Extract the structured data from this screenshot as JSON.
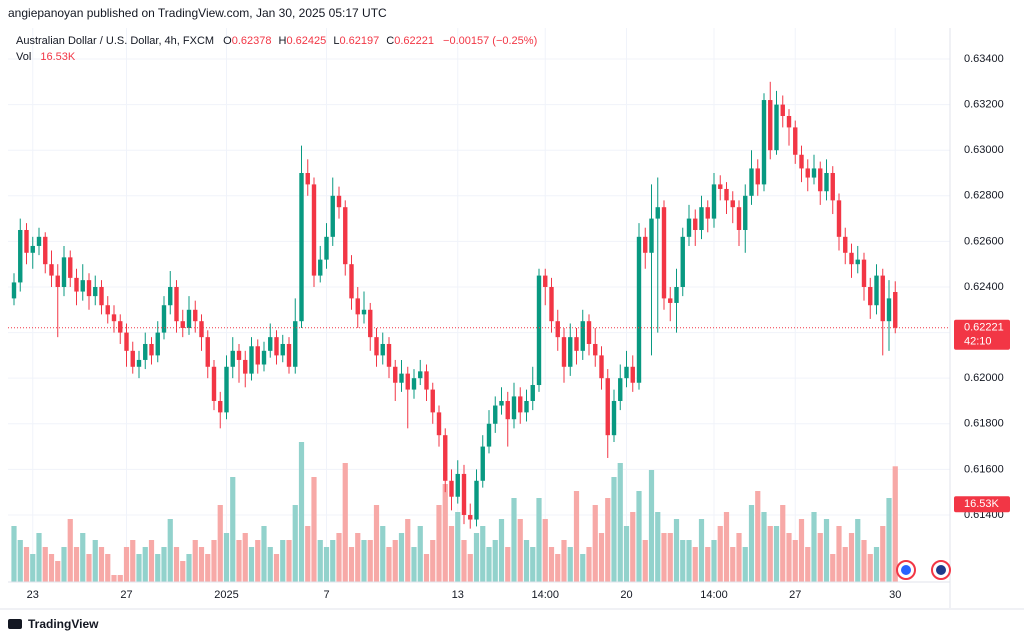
{
  "header": {
    "published": "angiepanoyan published on TradingView.com, Jan 30, 2025 05:17 UTC"
  },
  "chart_data": {
    "type": "candlestick",
    "title": "Australian Dollar / U.S. Dollar, 4h, FXCM",
    "legend": {
      "o": "O",
      "open": "0.62378",
      "h": "H",
      "high": "0.62425",
      "l": "L",
      "low": "0.62197",
      "c": "C",
      "close": "0.62221",
      "change": "−0.00157 (−0.25%)"
    },
    "volume_title": "Vol",
    "volume_label": "16.53K",
    "countdown": "42:10",
    "up_color": "#089981",
    "down_color": "#f23645",
    "up_volume_color": "#92d2cc",
    "down_volume_color": "#f7a9a7",
    "grid": true,
    "ylim": [
      0.61106,
      0.63536
    ],
    "yticks": [
      {
        "value": 0.614,
        "label": "0.61400"
      },
      {
        "value": 0.616,
        "label": "0.61600"
      },
      {
        "value": 0.618,
        "label": "0.61800"
      },
      {
        "value": 0.62,
        "label": "0.62000"
      },
      {
        "value": 0.622,
        "label": "0.62200"
      },
      {
        "value": 0.624,
        "label": "0.62400"
      },
      {
        "value": 0.626,
        "label": "0.62600"
      },
      {
        "value": 0.628,
        "label": "0.62800"
      },
      {
        "value": 0.63,
        "label": "0.63000"
      },
      {
        "value": 0.632,
        "label": "0.63200"
      },
      {
        "value": 0.634,
        "label": "0.63400"
      }
    ],
    "xlim": [
      -0.96,
      149.76
    ],
    "xticks": [
      {
        "value": 3,
        "label": "23"
      },
      {
        "value": 18,
        "label": "27"
      },
      {
        "value": 34,
        "label": "2025"
      },
      {
        "value": 50,
        "label": "7"
      },
      {
        "value": 71,
        "label": "13"
      },
      {
        "value": 85,
        "label": "14:00"
      },
      {
        "value": 98,
        "label": "20"
      },
      {
        "value": 112,
        "label": "14:00"
      },
      {
        "value": 125,
        "label": "27"
      },
      {
        "value": 141,
        "label": "30"
      }
    ],
    "ohlc": [
      [
        0.6235,
        0.6246,
        0.6232,
        0.6242
      ],
      [
        0.6242,
        0.627,
        0.6238,
        0.6265
      ],
      [
        0.6265,
        0.6268,
        0.625,
        0.6255
      ],
      [
        0.6255,
        0.6262,
        0.6248,
        0.6258
      ],
      [
        0.6258,
        0.6266,
        0.6254,
        0.6262
      ],
      [
        0.6262,
        0.6264,
        0.6246,
        0.625
      ],
      [
        0.625,
        0.6256,
        0.624,
        0.6245
      ],
      [
        0.6245,
        0.625,
        0.6218,
        0.624
      ],
      [
        0.624,
        0.6258,
        0.6236,
        0.6253
      ],
      [
        0.6253,
        0.6256,
        0.624,
        0.6244
      ],
      [
        0.6244,
        0.6248,
        0.6232,
        0.6238
      ],
      [
        0.6238,
        0.625,
        0.6234,
        0.6243
      ],
      [
        0.6243,
        0.6246,
        0.623,
        0.6236
      ],
      [
        0.6236,
        0.6245,
        0.6232,
        0.624
      ],
      [
        0.624,
        0.6243,
        0.6228,
        0.6232
      ],
      [
        0.6232,
        0.6236,
        0.6224,
        0.6228
      ],
      [
        0.6228,
        0.6232,
        0.622,
        0.6225
      ],
      [
        0.6225,
        0.6228,
        0.6215,
        0.622
      ],
      [
        0.622,
        0.6224,
        0.6205,
        0.6212
      ],
      [
        0.6212,
        0.6216,
        0.6202,
        0.6205
      ],
      [
        0.6205,
        0.6212,
        0.62,
        0.6208
      ],
      [
        0.6208,
        0.622,
        0.6204,
        0.6215
      ],
      [
        0.6215,
        0.6218,
        0.6206,
        0.621
      ],
      [
        0.621,
        0.6225,
        0.6207,
        0.622
      ],
      [
        0.622,
        0.6236,
        0.6217,
        0.6232
      ],
      [
        0.6232,
        0.6247,
        0.6228,
        0.624
      ],
      [
        0.624,
        0.6243,
        0.622,
        0.6225
      ],
      [
        0.6225,
        0.623,
        0.6218,
        0.6222
      ],
      [
        0.6222,
        0.6236,
        0.6219,
        0.623
      ],
      [
        0.623,
        0.6234,
        0.622,
        0.6225
      ],
      [
        0.6225,
        0.6228,
        0.6212,
        0.6218
      ],
      [
        0.6218,
        0.6221,
        0.62,
        0.6205
      ],
      [
        0.6205,
        0.6208,
        0.6186,
        0.619
      ],
      [
        0.619,
        0.6194,
        0.6178,
        0.6185
      ],
      [
        0.6185,
        0.621,
        0.6182,
        0.6205
      ],
      [
        0.6205,
        0.6218,
        0.62,
        0.6212
      ],
      [
        0.6212,
        0.6215,
        0.6198,
        0.6208
      ],
      [
        0.6208,
        0.6212,
        0.6196,
        0.6202
      ],
      [
        0.6202,
        0.6218,
        0.6199,
        0.6214
      ],
      [
        0.6214,
        0.6217,
        0.6202,
        0.6206
      ],
      [
        0.6206,
        0.6216,
        0.6203,
        0.6212
      ],
      [
        0.6212,
        0.6224,
        0.6209,
        0.6218
      ],
      [
        0.6218,
        0.6221,
        0.6206,
        0.621
      ],
      [
        0.621,
        0.6219,
        0.6207,
        0.6215
      ],
      [
        0.6215,
        0.6218,
        0.6202,
        0.6205
      ],
      [
        0.6205,
        0.6235,
        0.6202,
        0.6225
      ],
      [
        0.6225,
        0.6302,
        0.6222,
        0.629
      ],
      [
        0.629,
        0.6296,
        0.628,
        0.6285
      ],
      [
        0.6285,
        0.6288,
        0.624,
        0.6245
      ],
      [
        0.6245,
        0.6258,
        0.6242,
        0.6252
      ],
      [
        0.6252,
        0.6268,
        0.6248,
        0.6262
      ],
      [
        0.6262,
        0.6288,
        0.6258,
        0.628
      ],
      [
        0.628,
        0.6284,
        0.627,
        0.6275
      ],
      [
        0.6275,
        0.6278,
        0.6245,
        0.625
      ],
      [
        0.625,
        0.6254,
        0.623,
        0.6235
      ],
      [
        0.6235,
        0.624,
        0.6222,
        0.6228
      ],
      [
        0.6228,
        0.6238,
        0.6224,
        0.623
      ],
      [
        0.623,
        0.6233,
        0.6212,
        0.6218
      ],
      [
        0.6218,
        0.6222,
        0.6205,
        0.621
      ],
      [
        0.621,
        0.622,
        0.6206,
        0.6215
      ],
      [
        0.6215,
        0.6218,
        0.62,
        0.6205
      ],
      [
        0.6205,
        0.6208,
        0.619,
        0.6198
      ],
      [
        0.6198,
        0.6208,
        0.6194,
        0.6202
      ],
      [
        0.6202,
        0.6205,
        0.6178,
        0.6195
      ],
      [
        0.6195,
        0.6204,
        0.6191,
        0.62
      ],
      [
        0.62,
        0.6208,
        0.6197,
        0.6203
      ],
      [
        0.6203,
        0.6206,
        0.619,
        0.6195
      ],
      [
        0.6195,
        0.6198,
        0.618,
        0.6185
      ],
      [
        0.6185,
        0.6188,
        0.617,
        0.6175
      ],
      [
        0.6175,
        0.6178,
        0.615,
        0.6155
      ],
      [
        0.6155,
        0.616,
        0.6142,
        0.6148
      ],
      [
        0.6148,
        0.6164,
        0.6145,
        0.6158
      ],
      [
        0.6158,
        0.6162,
        0.6136,
        0.614
      ],
      [
        0.614,
        0.6145,
        0.6134,
        0.6138
      ],
      [
        0.6138,
        0.616,
        0.6135,
        0.6155
      ],
      [
        0.6155,
        0.6175,
        0.6152,
        0.617
      ],
      [
        0.617,
        0.6186,
        0.6167,
        0.618
      ],
      [
        0.618,
        0.6192,
        0.6176,
        0.6188
      ],
      [
        0.6188,
        0.6196,
        0.6184,
        0.619
      ],
      [
        0.619,
        0.6194,
        0.617,
        0.6182
      ],
      [
        0.6182,
        0.6198,
        0.6178,
        0.6192
      ],
      [
        0.6192,
        0.6196,
        0.618,
        0.6185
      ],
      [
        0.6185,
        0.6195,
        0.6181,
        0.619
      ],
      [
        0.619,
        0.6205,
        0.6186,
        0.6197
      ],
      [
        0.6197,
        0.6248,
        0.6194,
        0.6245
      ],
      [
        0.6245,
        0.6248,
        0.6232,
        0.624
      ],
      [
        0.624,
        0.6244,
        0.622,
        0.6225
      ],
      [
        0.6225,
        0.623,
        0.6212,
        0.6218
      ],
      [
        0.6218,
        0.6222,
        0.6198,
        0.6205
      ],
      [
        0.6205,
        0.6224,
        0.6201,
        0.6218
      ],
      [
        0.6218,
        0.6222,
        0.6206,
        0.6212
      ],
      [
        0.6212,
        0.623,
        0.6208,
        0.6225
      ],
      [
        0.6225,
        0.6228,
        0.621,
        0.6215
      ],
      [
        0.6215,
        0.6222,
        0.6205,
        0.621
      ],
      [
        0.621,
        0.6214,
        0.6195,
        0.62
      ],
      [
        0.62,
        0.6204,
        0.6165,
        0.6175
      ],
      [
        0.6175,
        0.6195,
        0.6172,
        0.619
      ],
      [
        0.619,
        0.6206,
        0.6186,
        0.62
      ],
      [
        0.62,
        0.6212,
        0.6196,
        0.6205
      ],
      [
        0.6205,
        0.621,
        0.6194,
        0.6198
      ],
      [
        0.6198,
        0.6268,
        0.6195,
        0.6262
      ],
      [
        0.6262,
        0.6266,
        0.6248,
        0.6255
      ],
      [
        0.6255,
        0.6285,
        0.621,
        0.627
      ],
      [
        0.627,
        0.6288,
        0.622,
        0.6275
      ],
      [
        0.6275,
        0.6278,
        0.623,
        0.6235
      ],
      [
        0.6235,
        0.624,
        0.6225,
        0.6233
      ],
      [
        0.6233,
        0.6248,
        0.622,
        0.624
      ],
      [
        0.624,
        0.6266,
        0.6236,
        0.6262
      ],
      [
        0.6262,
        0.6276,
        0.6258,
        0.627
      ],
      [
        0.627,
        0.6274,
        0.6258,
        0.6265
      ],
      [
        0.6265,
        0.628,
        0.6261,
        0.6275
      ],
      [
        0.6275,
        0.6278,
        0.6264,
        0.627
      ],
      [
        0.627,
        0.629,
        0.6266,
        0.6285
      ],
      [
        0.6285,
        0.6289,
        0.6278,
        0.6283
      ],
      [
        0.6283,
        0.6286,
        0.6272,
        0.6278
      ],
      [
        0.6278,
        0.6282,
        0.6268,
        0.6275
      ],
      [
        0.6275,
        0.6278,
        0.6258,
        0.6265
      ],
      [
        0.6265,
        0.6285,
        0.6255,
        0.628
      ],
      [
        0.628,
        0.63,
        0.6276,
        0.6292
      ],
      [
        0.6292,
        0.6296,
        0.628,
        0.6285
      ],
      [
        0.6285,
        0.6325,
        0.6282,
        0.6322
      ],
      [
        0.6322,
        0.633,
        0.6296,
        0.63
      ],
      [
        0.63,
        0.6326,
        0.6298,
        0.632
      ],
      [
        0.632,
        0.6324,
        0.631,
        0.6315
      ],
      [
        0.6315,
        0.6318,
        0.6302,
        0.631
      ],
      [
        0.631,
        0.6313,
        0.6294,
        0.6298
      ],
      [
        0.6298,
        0.6302,
        0.6286,
        0.6292
      ],
      [
        0.6292,
        0.6296,
        0.6282,
        0.6288
      ],
      [
        0.6288,
        0.6298,
        0.6285,
        0.6292
      ],
      [
        0.6292,
        0.6295,
        0.6276,
        0.6282
      ],
      [
        0.6282,
        0.6296,
        0.6278,
        0.629
      ],
      [
        0.629,
        0.6293,
        0.6272,
        0.6278
      ],
      [
        0.6278,
        0.6281,
        0.6256,
        0.6262
      ],
      [
        0.6262,
        0.6266,
        0.625,
        0.6255
      ],
      [
        0.6255,
        0.6259,
        0.6244,
        0.625
      ],
      [
        0.625,
        0.6258,
        0.6246,
        0.6252
      ],
      [
        0.6252,
        0.6255,
        0.6234,
        0.624
      ],
      [
        0.624,
        0.6244,
        0.6226,
        0.6232
      ],
      [
        0.6232,
        0.625,
        0.6228,
        0.6245
      ],
      [
        0.6245,
        0.6248,
        0.621,
        0.6225
      ],
      [
        0.6225,
        0.6243,
        0.6212,
        0.6235
      ],
      [
        0.62378,
        0.62425,
        0.62197,
        0.62221
      ]
    ],
    "volume": [
      8,
      6,
      5,
      4,
      7,
      5,
      4,
      3,
      5,
      9,
      5,
      7,
      4,
      6,
      5,
      4,
      1,
      1,
      5,
      6,
      4,
      5,
      6,
      4,
      5,
      9,
      5,
      3,
      4,
      6,
      5,
      4,
      6,
      11,
      7,
      15,
      6,
      7,
      5,
      6,
      8,
      5,
      4,
      6,
      6,
      11,
      20,
      8,
      15,
      6,
      5,
      6,
      7,
      17,
      5,
      7,
      6,
      6,
      11,
      8,
      5,
      6,
      7,
      9,
      5,
      8,
      4,
      6,
      11,
      14,
      8,
      10,
      6,
      4,
      7,
      8,
      5,
      6,
      9,
      5,
      12,
      9,
      6,
      5,
      12,
      9,
      5,
      4,
      6,
      5,
      13,
      4,
      5,
      11,
      7,
      12,
      15,
      17,
      8,
      10,
      13,
      6,
      16,
      10,
      7,
      7,
      9,
      6,
      6,
      5,
      9,
      5,
      6,
      8,
      10,
      5,
      7,
      5,
      11,
      13,
      10,
      8,
      8,
      11,
      7,
      6,
      9,
      5,
      10,
      7,
      9,
      4,
      8,
      5,
      7,
      9,
      6,
      4,
      5,
      8,
      12,
      16.53
    ]
  },
  "footer": {
    "brand": "TradingView"
  }
}
